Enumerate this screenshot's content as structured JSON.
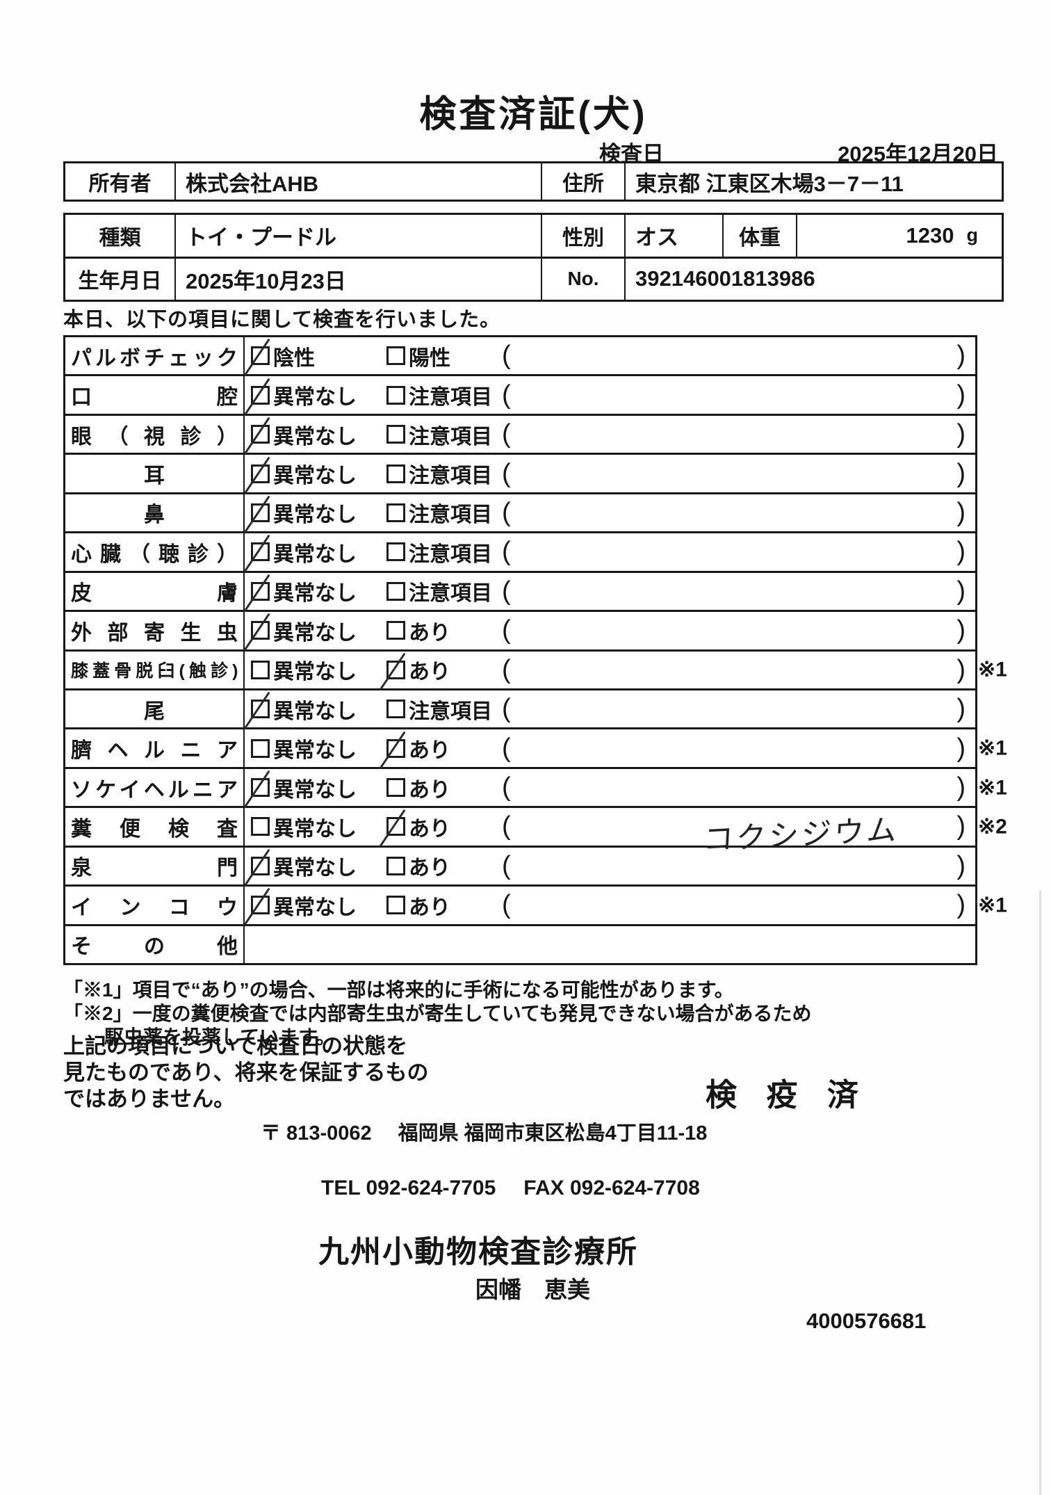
{
  "title": "検査済証(犬)",
  "header": {
    "date_label": "検査日",
    "date_value": "2025年12月20日"
  },
  "owner_row": {
    "owner_label": "所有者",
    "owner_value": "株式会社AHB",
    "address_label": "住所",
    "address_value": "東京都 江東区木場3－7－11"
  },
  "pet_table": {
    "breed_label": "種類",
    "breed_value": "トイ・プードル",
    "sex_label": "性別",
    "sex_value": "オス",
    "weight_label": "体重",
    "weight_value": "1230",
    "weight_unit": "g",
    "birth_label": "生年月日",
    "birth_value": "2025年10月23日",
    "no_label": "No.",
    "no_value": "392146001813986"
  },
  "intro": "本日、以下の項目に関して検査を行いました。",
  "checklist": {
    "items": [
      {
        "label": "パルボチェック",
        "opt1": "陰性",
        "opt2": "陽性",
        "checked": 1,
        "note": "",
        "mark": ""
      },
      {
        "label": "口腔",
        "opt1": "異常なし",
        "opt2": "注意項目",
        "checked": 1,
        "note": "",
        "mark": ""
      },
      {
        "label": "眼（視診）",
        "opt1": "異常なし",
        "opt2": "注意項目",
        "checked": 1,
        "note": "",
        "mark": ""
      },
      {
        "label": "耳",
        "opt1": "異常なし",
        "opt2": "注意項目",
        "checked": 1,
        "note": "",
        "mark": ""
      },
      {
        "label": "鼻",
        "opt1": "異常なし",
        "opt2": "注意項目",
        "checked": 1,
        "note": "",
        "mark": ""
      },
      {
        "label": "心臓（聴診）",
        "opt1": "異常なし",
        "opt2": "注意項目",
        "checked": 1,
        "note": "",
        "mark": ""
      },
      {
        "label": "皮膚",
        "opt1": "異常なし",
        "opt2": "注意項目",
        "checked": 1,
        "note": "",
        "mark": ""
      },
      {
        "label": "外部寄生虫",
        "opt1": "異常なし",
        "opt2": "あり",
        "checked": 1,
        "note": "",
        "mark": ""
      },
      {
        "label": "膝蓋骨脱臼(触診)",
        "opt1": "異常なし",
        "opt2": "あり",
        "checked": 2,
        "note": "",
        "mark": "※1"
      },
      {
        "label": "尾",
        "opt1": "異常なし",
        "opt2": "注意項目",
        "checked": 1,
        "note": "",
        "mark": ""
      },
      {
        "label": "臍ヘルニア",
        "opt1": "異常なし",
        "opt2": "あり",
        "checked": 2,
        "note": "",
        "mark": "※1"
      },
      {
        "label": "ソケイヘルニア",
        "opt1": "異常なし",
        "opt2": "あり",
        "checked": 1,
        "note": "",
        "mark": "※1"
      },
      {
        "label": "糞便検査",
        "opt1": "異常なし",
        "opt2": "あり",
        "checked": 2,
        "note": "コクシジウム",
        "mark": "※2"
      },
      {
        "label": "泉門",
        "opt1": "異常なし",
        "opt2": "あり",
        "checked": 1,
        "note": "",
        "mark": ""
      },
      {
        "label": "インコウ",
        "opt1": "異常なし",
        "opt2": "あり",
        "checked": 1,
        "note": "",
        "mark": "※1"
      },
      {
        "label": "その他",
        "opt1": "",
        "opt2": "",
        "checked": 0,
        "note": "",
        "mark": ""
      }
    ],
    "paren_open": "(",
    "paren_close": ")"
  },
  "footnotes": {
    "note1": "「※1」項目で“あり”の場合、一部は将来的に手術になる可能性があります。",
    "note2_line1": "「※2」一度の糞便検査では内部寄生虫が寄生していても発見できない場合があるため",
    "note2_line2": "駆虫薬を投薬しています。"
  },
  "disclaimer": {
    "line1": "上記の項目について検査日の状態を",
    "line2": "見たものであり、将来を保証するもの",
    "line3": "ではありません。"
  },
  "stamp": "検 疫 済",
  "clinic": {
    "postal": "〒 813-0062",
    "address": "福岡県 福岡市東区松島4丁目11-18",
    "tel": "TEL 092-624-7705",
    "fax": "FAX 092-624-7708",
    "name": "九州小動物検査診療所",
    "examiner": "因幡　恵美",
    "serial": "4000576681"
  }
}
